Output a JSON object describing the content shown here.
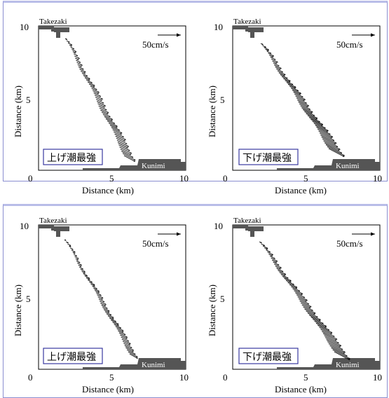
{
  "panels": [
    {
      "id": "p1",
      "tide_label": "上げ潮最強",
      "scale_label": "50cm/s",
      "west_coast": "Takezaki",
      "east_coast": "Kunimi",
      "xlabel": "Distance (km)",
      "ylabel": "Distance (km)",
      "x_ticks": [
        "0",
        "5",
        "10"
      ],
      "y_ticks": [
        "10",
        "5"
      ]
    },
    {
      "id": "p2",
      "tide_label": "下げ潮最強",
      "scale_label": "50cm/s",
      "west_coast": "Takezaki",
      "east_coast": "Kunimi",
      "xlabel": "Distance (km)",
      "ylabel": "Distance (km)",
      "x_ticks": [
        "0",
        "5",
        "10"
      ],
      "y_ticks": [
        "10",
        "5"
      ]
    },
    {
      "id": "p3",
      "tide_label": "上げ潮最強",
      "scale_label": "50cm/s",
      "west_coast": "Takezaki",
      "east_coast": "Kunimi",
      "xlabel": "Distance (km)",
      "ylabel": "Distance (km)",
      "x_ticks": [
        "0",
        "5",
        "10"
      ],
      "y_ticks": [
        "10",
        "5"
      ]
    },
    {
      "id": "p4",
      "tide_label": "下げ潮最強",
      "scale_label": "50cm/s",
      "west_coast": "Takezaki",
      "east_coast": "Kunimi",
      "xlabel": "Distance (km)",
      "ylabel": "Distance (km)",
      "x_ticks": [
        "0",
        "5",
        "10"
      ],
      "y_ticks": [
        "10",
        "5"
      ]
    }
  ],
  "colors": {
    "land": "#555555",
    "frame_border": "#8a8ed0",
    "label_border": "#3a3aa0"
  }
}
